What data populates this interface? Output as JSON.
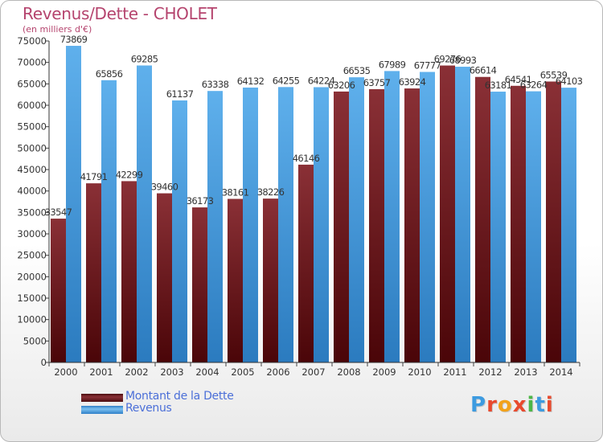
{
  "title": "Revenus/Dette - CHOLET",
  "subtitle": "(en milliers d'€)",
  "colors": {
    "title": "#b5446e",
    "dette": "#6b1d22",
    "revenus": "#4ba3e6",
    "legend_text": "#4b6fd8",
    "axis": "#333333"
  },
  "chart_data": {
    "type": "bar",
    "categories": [
      "2000",
      "2001",
      "2002",
      "2003",
      "2004",
      "2005",
      "2006",
      "2007",
      "2008",
      "2009",
      "2010",
      "2011",
      "2012",
      "2013",
      "2014"
    ],
    "series": [
      {
        "name": "Montant de la Dette",
        "values": [
          33547,
          41791,
          42299,
          39460,
          36173,
          38161,
          38226,
          46146,
          63206,
          63757,
          63924,
          69276,
          66614,
          64541,
          65539
        ],
        "labels": [
          "33547",
          "41791",
          "42299",
          "39460",
          "36173",
          "38161",
          "38226",
          "46146",
          "63206",
          "63757",
          "63924",
          "69276",
          "66614",
          "64541",
          "65539"
        ]
      },
      {
        "name": "Revenus",
        "values": [
          73869,
          65856,
          69285,
          61137,
          63338,
          64132,
          64255,
          64224,
          66535,
          67989,
          67777,
          68993,
          63181,
          63264,
          64103
        ],
        "labels": [
          "73869",
          "65856",
          "69285",
          "61137",
          "63338",
          "64132",
          "64255",
          "64224",
          "66535",
          "67989",
          "67777",
          "68993",
          "63181",
          "63264",
          "64103"
        ]
      }
    ],
    "ylim": [
      0,
      75000
    ],
    "yticks": [
      0,
      5000,
      10000,
      15000,
      20000,
      25000,
      30000,
      35000,
      40000,
      45000,
      50000,
      55000,
      60000,
      65000,
      70000,
      75000
    ],
    "ytick_labels": [
      "0",
      "5000",
      "10000",
      "15000",
      "20000",
      "25000",
      "30000",
      "35000",
      "40000",
      "45000",
      "50000",
      "55000",
      "60000",
      "65000",
      "70000",
      "75000"
    ],
    "grid": false,
    "legend": "bottom-left"
  },
  "legend": [
    {
      "label": "Montant de la Dette"
    },
    {
      "label": "Revenus"
    }
  ],
  "logo": {
    "letters": [
      "P",
      "r",
      "o",
      "x",
      "i",
      "t",
      "i"
    ],
    "colors": [
      "#3d9be0",
      "#e84a2e",
      "#f2a21b",
      "#e84a2e",
      "#4cb748",
      "#3d9be0",
      "#e84a2e"
    ]
  }
}
